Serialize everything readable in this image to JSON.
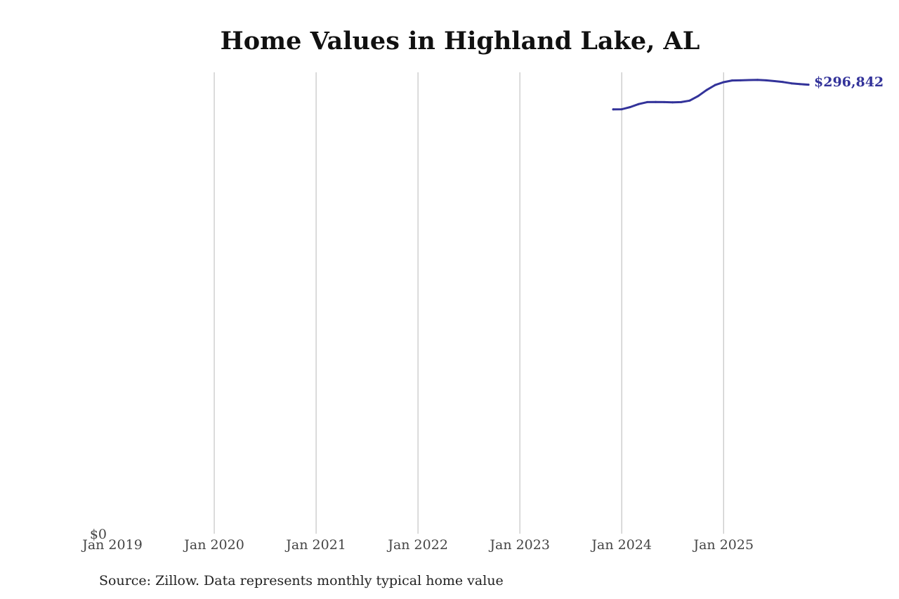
{
  "chart_data": {
    "type": "line",
    "title": "Home Values in Highland Lake, AL",
    "xlabel": "",
    "ylabel": "",
    "x_ticks": [
      "Jan 2019",
      "Jan 2020",
      "Jan 2021",
      "Jan 2022",
      "Jan 2023",
      "Jan 2024",
      "Jan 2025"
    ],
    "y_tick": "$0",
    "x_range": [
      "2019-01",
      "2025-12"
    ],
    "ylim": [
      0,
      305000
    ],
    "grid": "vertical",
    "legend": "none",
    "color": "#33339a",
    "series": [
      {
        "points": [
          {
            "x": "2023-12",
            "y": 280500
          },
          {
            "x": "2024-01",
            "y": 280600
          },
          {
            "x": "2024-02",
            "y": 282000
          },
          {
            "x": "2024-03",
            "y": 284000
          },
          {
            "x": "2024-04",
            "y": 285300
          },
          {
            "x": "2024-05",
            "y": 285400
          },
          {
            "x": "2024-06",
            "y": 285300
          },
          {
            "x": "2024-07",
            "y": 285200
          },
          {
            "x": "2024-08",
            "y": 285300
          },
          {
            "x": "2024-09",
            "y": 286300
          },
          {
            "x": "2024-10",
            "y": 289300
          },
          {
            "x": "2024-11",
            "y": 293300
          },
          {
            "x": "2024-12",
            "y": 296600
          },
          {
            "x": "2025-01",
            "y": 298500
          },
          {
            "x": "2025-02",
            "y": 299600
          },
          {
            "x": "2025-03",
            "y": 299700
          },
          {
            "x": "2025-04",
            "y": 299900
          },
          {
            "x": "2025-05",
            "y": 300000
          },
          {
            "x": "2025-06",
            "y": 299700
          },
          {
            "x": "2025-07",
            "y": 299200
          },
          {
            "x": "2025-08",
            "y": 298600
          },
          {
            "x": "2025-09",
            "y": 297700
          },
          {
            "x": "2025-10",
            "y": 297200
          },
          {
            "x": "2025-11",
            "y": 296842
          }
        ]
      }
    ],
    "end_label": "$296,842"
  },
  "source_note": "Source: Zillow. Data represents monthly typical home value"
}
